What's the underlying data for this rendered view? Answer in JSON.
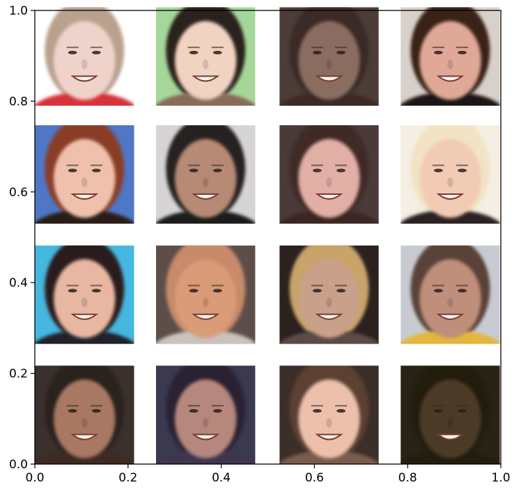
{
  "chart_data": {
    "type": "image-grid",
    "xlim": [
      0.0,
      1.0
    ],
    "ylim": [
      0.0,
      1.0
    ],
    "xticks": [
      "0.0",
      "0.2",
      "0.4",
      "0.6",
      "0.8",
      "1.0"
    ],
    "yticks": [
      "0.0",
      "0.2",
      "0.4",
      "0.6",
      "0.8",
      "1.0"
    ],
    "grid": false,
    "rows": 4,
    "cols": 4,
    "cells": [
      {
        "desc": "man-light-hair-blurred",
        "skin": "#efd3cb",
        "hair": "#b9a28d",
        "bg": "#ffffff",
        "shirt": "#d8333a"
      },
      {
        "desc": "young-man-dark-hair",
        "skin": "#f1d3c2",
        "hair": "#2b201b",
        "bg": "#a6d79a",
        "shirt": "#8a6b5a"
      },
      {
        "desc": "girl-dark-hair-dim",
        "skin": "#8a6c61",
        "hair": "#3a2b27",
        "bg": "#4c3d39",
        "shirt": "#3a2b27"
      },
      {
        "desc": "woman-dark-bangs",
        "skin": "#e0a897",
        "hair": "#3a2318",
        "bg": "#d8d1cb",
        "shirt": "#1c1412"
      },
      {
        "desc": "woman-red-hair-laughing",
        "skin": "#efc1ad",
        "hair": "#8a3c25",
        "bg": "#4f77c5",
        "shirt": "#2c1a14"
      },
      {
        "desc": "man-black-cap",
        "skin": "#b68a74",
        "hair": "#262322",
        "bg": "#d6d4d5",
        "shirt": "#1b1b1d"
      },
      {
        "desc": "girl-brown-hair",
        "skin": "#e1afa6",
        "hair": "#3f2a26",
        "bg": "#4a3a3a",
        "shirt": "#3a2623"
      },
      {
        "desc": "woman-blonde",
        "skin": "#f2cbb4",
        "hair": "#f2e3c4",
        "bg": "#f4eee3",
        "shirt": "#2a2420"
      },
      {
        "desc": "young-man-dark-hair-blue-bg",
        "skin": "#e8b7a2",
        "hair": "#2a1f1b",
        "bg": "#46b7e0",
        "shirt": "#23242a"
      },
      {
        "desc": "man-bald-side-view",
        "skin": "#d99b78",
        "hair": "#c78a6a",
        "bg": "#5d4e49",
        "shirt": "#c9c2bd"
      },
      {
        "desc": "woman-short-blonde",
        "skin": "#c9a08a",
        "hair": "#c9a36a",
        "bg": "#2b211f",
        "shirt": "#5a4b44"
      },
      {
        "desc": "boy-yellow-shirt",
        "skin": "#bf8f7b",
        "hair": "#5a4339",
        "bg": "#c9cbd2",
        "shirt": "#e2b73a"
      },
      {
        "desc": "girl-dark-hair-smiling",
        "skin": "#a87864",
        "hair": "#2b211e",
        "bg": "#3a302d",
        "shirt": "#3d2a24"
      },
      {
        "desc": "woman-dim-dark-hair",
        "skin": "#b5877d",
        "hair": "#2b2330",
        "bg": "#3a3950",
        "shirt": "#403550"
      },
      {
        "desc": "man-short-hair-smiling",
        "skin": "#ecc0aa",
        "hair": "#5b4132",
        "bg": "#3c2e29",
        "shirt": "#7a5c4e"
      },
      {
        "desc": "woman-very-dark-photo",
        "skin": "#4c3b26",
        "hair": "#241a10",
        "bg": "#2a2214",
        "shirt": "#241a10"
      }
    ]
  }
}
